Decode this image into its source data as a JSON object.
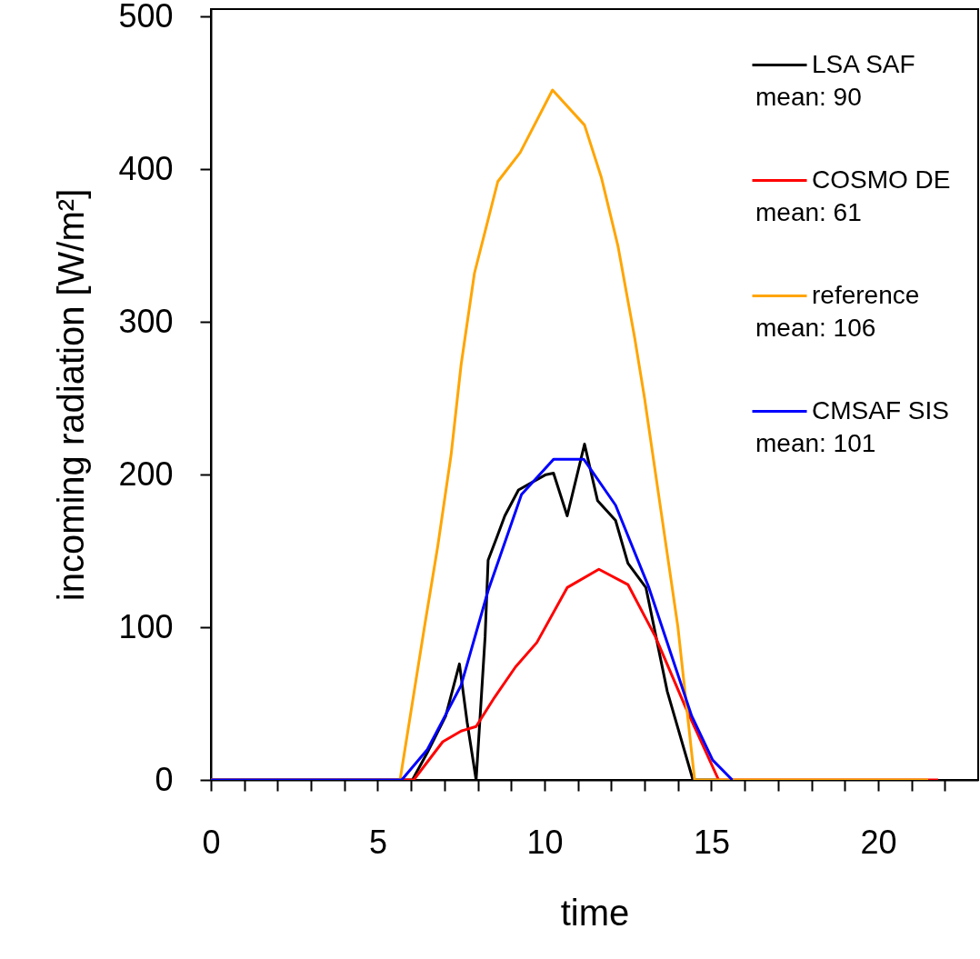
{
  "chart_data": {
    "type": "line",
    "xlabel": "time",
    "ylabel": "incoming radiation [W/m²]",
    "xlim": [
      0,
      23
    ],
    "ylim": [
      0,
      505
    ],
    "xticks": [
      0,
      {
        "value": 1,
        "label": null
      },
      {
        "value": 2,
        "label": null
      },
      {
        "value": 3,
        "label": null
      },
      {
        "value": 4,
        "label": null
      },
      5,
      {
        "value": 6,
        "label": null
      },
      {
        "value": 7,
        "label": null
      },
      {
        "value": 8,
        "label": null
      },
      {
        "value": 9,
        "label": null
      },
      10,
      {
        "value": 11,
        "label": null
      },
      {
        "value": 12,
        "label": null
      },
      {
        "value": 13,
        "label": null
      },
      {
        "value": 14,
        "label": null
      },
      15,
      {
        "value": 16,
        "label": null
      },
      {
        "value": 17,
        "label": null
      },
      {
        "value": 18,
        "label": null
      },
      {
        "value": 19,
        "label": null
      },
      20,
      {
        "value": 21,
        "label": null
      },
      {
        "value": 22,
        "label": null
      }
    ],
    "yticks": [
      0,
      100,
      200,
      300,
      400,
      500
    ],
    "legend": "top right",
    "grid": false,
    "line_style": "solid",
    "annotations": [
      "mean:   90",
      "mean:   61",
      "mean:   106",
      "mean:   101"
    ],
    "series": [
      {
        "name": "LSA SAF",
        "color": "#000000",
        "x": [
          0,
          6.04,
          6.49,
          7.04,
          7.45,
          7.68,
          7.95,
          8.08,
          8.22,
          8.31,
          8.59,
          8.81,
          9.22,
          10.04,
          10.27,
          10.68,
          11.2,
          11.59,
          12.13,
          12.5,
          13.04,
          13.68,
          14.45,
          15.2
        ],
        "values": [
          0,
          0,
          18,
          42,
          76,
          38,
          0,
          45,
          94,
          144,
          160,
          173,
          190,
          200,
          201,
          173,
          220,
          183,
          170,
          142,
          126,
          58,
          0,
          0
        ]
      },
      {
        "name": "COSMO DE",
        "color": "#ff0000",
        "x": [
          0,
          6.08,
          6.95,
          7.5,
          7.95,
          8.5,
          9.13,
          9.77,
          10.68,
          11.63,
          12.5,
          13.32,
          14.22,
          15.22,
          21.8
        ],
        "values": [
          0,
          0,
          25,
          32,
          35,
          54,
          74,
          90,
          126,
          138,
          128,
          94,
          48,
          0,
          0
        ]
      },
      {
        "name": "reference",
        "color": "#ffa500",
        "x": [
          0,
          5.67,
          6.4,
          6.8,
          7.2,
          7.5,
          7.9,
          8.6,
          9.27,
          10.24,
          11.2,
          11.7,
          12.2,
          12.7,
          13.0,
          13.5,
          14.0,
          14.5,
          21.5
        ],
        "values": [
          0,
          0,
          100,
          153,
          213,
          272,
          332,
          392,
          411,
          452,
          429,
          395,
          350,
          290,
          250,
          175,
          100,
          0,
          0
        ]
      },
      {
        "name": "CMSAF SIS",
        "color": "#0000ff",
        "x": [
          0,
          5.72,
          6.49,
          6.9,
          7.5,
          8.31,
          9.31,
          10.27,
          11.18,
          12.13,
          13.13,
          14.41,
          15.04,
          15.63
        ],
        "values": [
          0,
          0,
          20,
          37,
          62,
          124,
          187,
          210,
          210,
          180,
          126,
          42,
          13,
          0
        ]
      }
    ]
  }
}
